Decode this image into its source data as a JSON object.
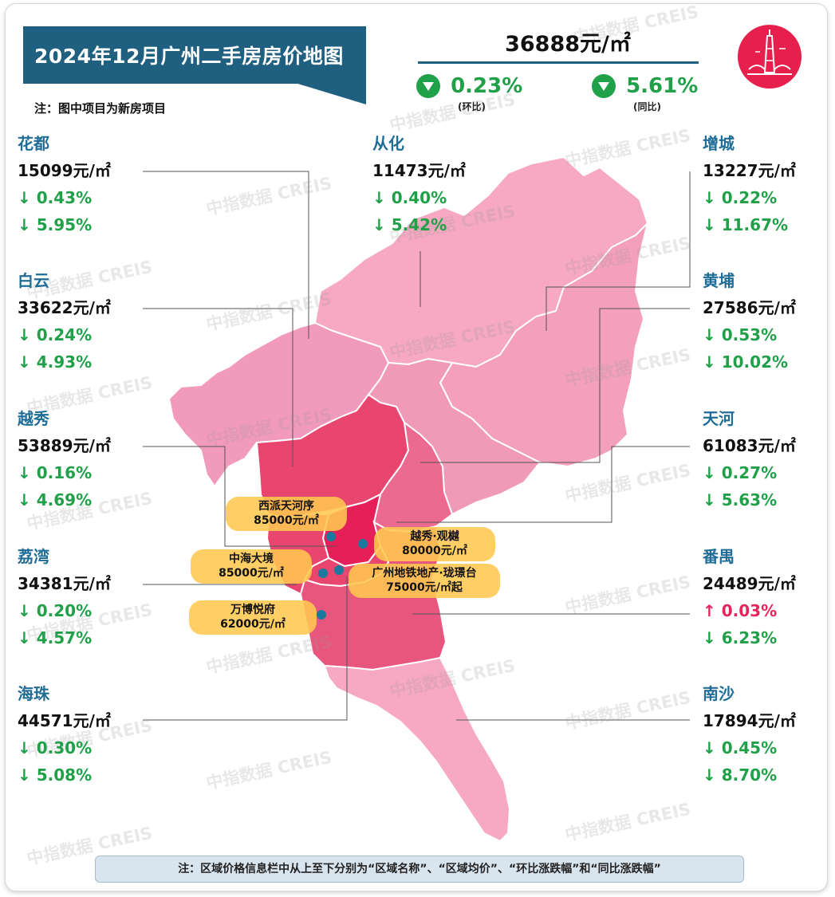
{
  "title": "2024年12月广州二手房房价地图",
  "note_top": "注：图中项目为新房项目",
  "headline": {
    "price": "36888元/㎡",
    "mom_change": "0.23%",
    "mom_label": "(环比)",
    "yoy_change": "5.61%",
    "yoy_label": "(同比)",
    "change_color": "#20a048"
  },
  "districts": {
    "huadu": {
      "name": "花都",
      "price": "15099元/㎡",
      "mom": "↓ 0.43%",
      "yoy": "↓ 5.95%"
    },
    "conghua": {
      "name": "从化",
      "price": "11473元/㎡",
      "mom": "↓ 0.40%",
      "yoy": "↓ 5.42%"
    },
    "zengcheng": {
      "name": "增城",
      "price": "13227元/㎡",
      "mom": "↓ 0.22%",
      "yoy": "↓ 11.67%"
    },
    "baiyun": {
      "name": "白云",
      "price": "33622元/㎡",
      "mom": "↓ 0.24%",
      "yoy": "↓ 4.93%"
    },
    "huangpu": {
      "name": "黄埔",
      "price": "27586元/㎡",
      "mom": "↓ 0.53%",
      "yoy": "↓ 10.02%"
    },
    "yuexiu": {
      "name": "越秀",
      "price": "53889元/㎡",
      "mom": "↓ 0.16%",
      "yoy": "↓ 4.69%"
    },
    "tianhe": {
      "name": "天河",
      "price": "61083元/㎡",
      "mom": "↓ 0.27%",
      "yoy": "↓ 5.63%"
    },
    "liwan": {
      "name": "荔湾",
      "price": "34381元/㎡",
      "mom": "↓ 0.20%",
      "yoy": "↓ 4.57%"
    },
    "panyu": {
      "name": "番禺",
      "price": "24489元/㎡",
      "mom": "↑ 0.03%",
      "yoy": "↓ 6.23%"
    },
    "haizhu": {
      "name": "海珠",
      "price": "44571元/㎡",
      "mom": "↓ 0.30%",
      "yoy": "↓ 5.08%"
    },
    "nansha": {
      "name": "南沙",
      "price": "17894元/㎡",
      "mom": "↓ 0.45%",
      "yoy": "↓ 8.70%"
    }
  },
  "projects": [
    {
      "name": "西派天河序",
      "price": "85000元/㎡"
    },
    {
      "name": "越秀·观樾",
      "price": "80000元/㎡"
    },
    {
      "name": "中海大境",
      "price": "85000元/㎡"
    },
    {
      "name": "广州地铁地产·珑璟台",
      "price": "75000元/㎡起"
    },
    {
      "name": "万博悦府",
      "price": "62000元/㎡"
    }
  ],
  "watermark": "中指数据 CREIS",
  "footer_note": "注：区域价格信息栏中从上至下分别为“区域名称”、“区域均价”、“环比涨跌幅”和“同比涨跌幅”",
  "colors": {
    "title_bg": "#1f5f80",
    "district_name": "#1f6d96",
    "down": "#20a048",
    "up": "#e8245c",
    "map_light": "#f5a3bf",
    "map_mid": "#ec6a90",
    "map_dark": "#e8456f",
    "map_core": "#e51f58",
    "project_label": "#ffc850",
    "project_dot": "#1a7a9e"
  }
}
